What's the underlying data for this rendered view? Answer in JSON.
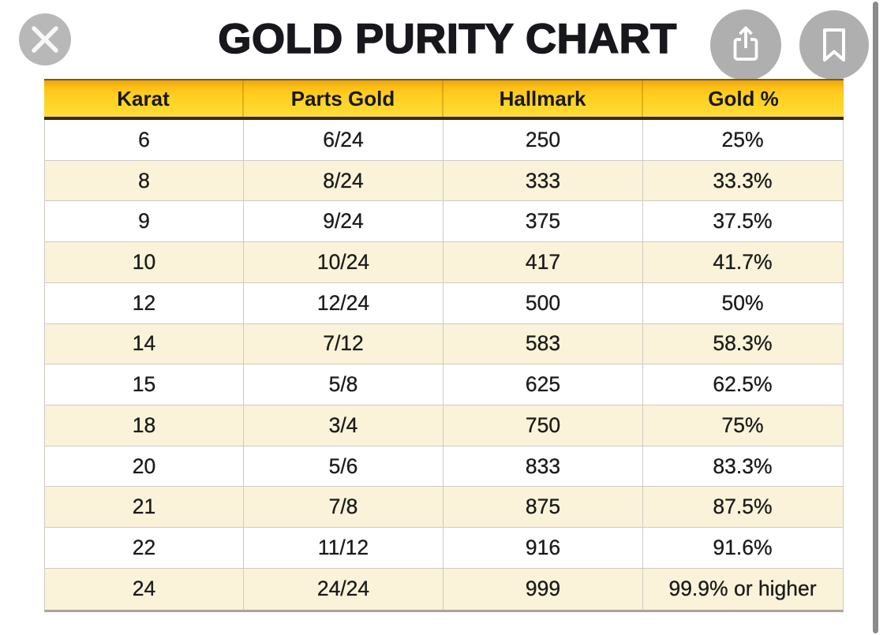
{
  "title": "GOLD PURITY CHART",
  "toolbar": {
    "close_icon": "close-x",
    "share_icon": "share-up-arrow",
    "bookmark_icon": "bookmark"
  },
  "table": {
    "columns": [
      "Karat",
      "Parts Gold",
      "Hallmark",
      "Gold %"
    ],
    "rows": [
      [
        "6",
        "6/24",
        "250",
        "25%"
      ],
      [
        "8",
        "8/24",
        "333",
        "33.3%"
      ],
      [
        "9",
        "9/24",
        "375",
        "37.5%"
      ],
      [
        "10",
        "10/24",
        "417",
        "41.7%"
      ],
      [
        "12",
        "12/24",
        "500",
        "50%"
      ],
      [
        "14",
        "7/12",
        "583",
        "58.3%"
      ],
      [
        "15",
        "5/8",
        "625",
        "62.5%"
      ],
      [
        "18",
        "3/4",
        "750",
        "75%"
      ],
      [
        "20",
        "5/6",
        "833",
        "83.3%"
      ],
      [
        "21",
        "7/8",
        "875",
        "87.5%"
      ],
      [
        "22",
        "11/12",
        "916",
        "91.6%"
      ],
      [
        "24",
        "24/24",
        "999",
        "99.9% or higher"
      ]
    ]
  },
  "colors": {
    "header_gradient_top": "#eda50e",
    "header_gradient_bottom": "#ffd72b",
    "row_alt": "#faf3d9",
    "row_border": "#cecbc3",
    "accent_dark_line": "#322c01"
  }
}
